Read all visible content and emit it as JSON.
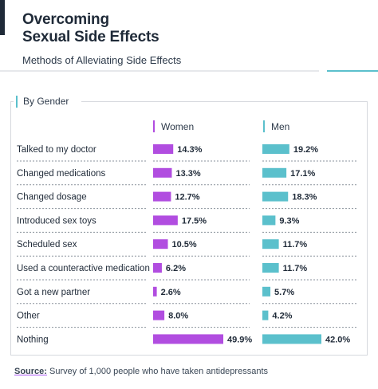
{
  "header": {
    "title_line1": "Overcoming",
    "title_line2": "Sexual Side Effects",
    "subtitle": "Methods of Alleviating Side Effects"
  },
  "tab_label": "By Gender",
  "source": {
    "label": "Source:",
    "text": "Survey of 1,000 people who have taken antidepressants"
  },
  "colors": {
    "women": "#b14de0",
    "men": "#5bc0cc",
    "dark": "#1f2a38"
  },
  "chart_data": {
    "type": "bar",
    "orientation": "horizontal",
    "categories": [
      "Talked to my doctor",
      "Changed medications",
      "Changed dosage",
      "Introduced sex toys",
      "Scheduled sex",
      "Used a counteractive medication",
      "Got a new partner",
      "Other",
      "Nothing"
    ],
    "series": [
      {
        "name": "Women",
        "values": [
          14.3,
          13.3,
          12.7,
          17.5,
          10.5,
          6.2,
          2.6,
          8.0,
          49.9
        ],
        "labels": [
          "14.3%",
          "13.3%",
          "12.7%",
          "17.5%",
          "10.5%",
          "6.2%",
          "2.6%",
          "8.0%",
          "49.9%"
        ]
      },
      {
        "name": "Men",
        "values": [
          19.2,
          17.1,
          18.3,
          9.3,
          11.7,
          11.7,
          5.7,
          4.2,
          42.0
        ],
        "labels": [
          "19.2%",
          "17.1%",
          "18.3%",
          "9.3%",
          "11.7%",
          "11.7%",
          "5.7%",
          "4.2%",
          "42.0%"
        ]
      }
    ],
    "xlim": [
      0,
      50
    ]
  }
}
